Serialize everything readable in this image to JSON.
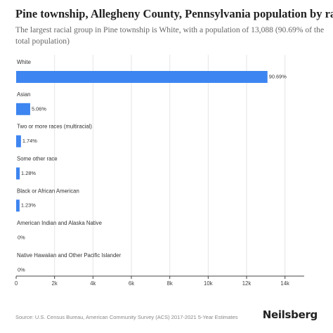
{
  "header": {
    "title": "Pine township, Allegheny County, Pennsylvania population by race",
    "subtitle": "The largest racial group in Pine township is White, with a population of 13,088 (90.69% of the total population)"
  },
  "footer": {
    "source": "Source: U.S. Census Bureau, American Community Survey (ACS) 2017-2021 5-Year Estimates",
    "logo": "Neilsberg"
  },
  "colors": {
    "bar": "#3d85f0",
    "axis": "#444444",
    "grid": "#e6e6e6",
    "label": "#333333",
    "tick": "#444444"
  },
  "chart_data": {
    "type": "bar",
    "orientation": "horizontal",
    "categories": [
      "White",
      "Asian",
      "Two or more races (multiracial)",
      "Some other race",
      "Black or African American",
      "American Indian and Alaska Native",
      "Native Hawaiian and Other Pacific Islander"
    ],
    "values": [
      13088,
      730,
      251,
      185,
      177,
      0,
      0
    ],
    "data_labels": [
      "90.69%",
      "5.06%",
      "1.74%",
      "1.28%",
      "1.23%",
      "0%",
      "0%"
    ],
    "xlim": [
      0,
      15000
    ],
    "xticks": [
      0,
      2000,
      4000,
      6000,
      8000,
      10000,
      12000,
      14000
    ],
    "xtick_labels": [
      "0",
      "2k",
      "4k",
      "6k",
      "8k",
      "10k",
      "12k",
      "14k"
    ],
    "grid": true
  }
}
